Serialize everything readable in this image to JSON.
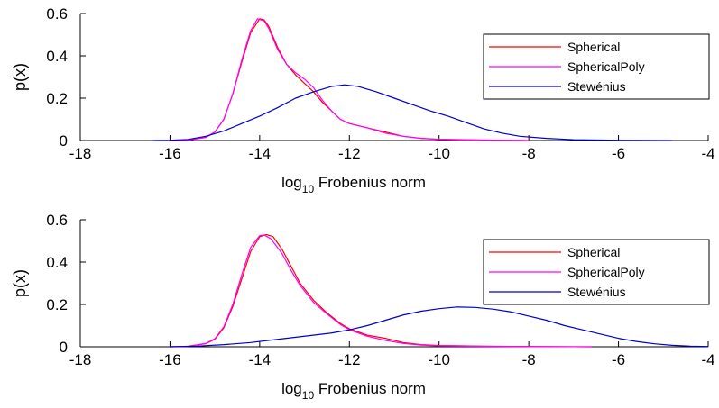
{
  "chart_data": [
    {
      "type": "line",
      "xlabel_base": "log",
      "xlabel_sub": "10",
      "xlabel_rest": " Frobenius norm",
      "ylabel": "p(x)",
      "xlim": [
        -18,
        -4
      ],
      "ylim": [
        0,
        0.6
      ],
      "xticks": [
        -18,
        -16,
        -14,
        -12,
        -10,
        -8,
        -6,
        -4
      ],
      "xtick_labels": [
        "-18",
        "-16",
        "-14",
        "-12",
        "-10",
        "-8",
        "-6",
        "-4"
      ],
      "yticks": [
        0,
        0.2,
        0.4,
        0.6
      ],
      "ytick_labels": [
        "0",
        "0.2",
        "0.4",
        "0.6"
      ],
      "grid": false,
      "legend_position": "top-right",
      "series": [
        {
          "name": "Spherical",
          "color": "#ff0000",
          "points": [
            [
              -16.0,
              0.0
            ],
            [
              -15.6,
              0.002
            ],
            [
              -15.2,
              0.015
            ],
            [
              -15.0,
              0.04
            ],
            [
              -14.8,
              0.1
            ],
            [
              -14.6,
              0.22
            ],
            [
              -14.4,
              0.37
            ],
            [
              -14.2,
              0.51
            ],
            [
              -14.0,
              0.575
            ],
            [
              -13.9,
              0.57
            ],
            [
              -13.8,
              0.54
            ],
            [
              -13.6,
              0.44
            ],
            [
              -13.4,
              0.36
            ],
            [
              -13.2,
              0.31
            ],
            [
              -13.0,
              0.27
            ],
            [
              -12.8,
              0.23
            ],
            [
              -12.6,
              0.18
            ],
            [
              -12.4,
              0.14
            ],
            [
              -12.2,
              0.1
            ],
            [
              -12.0,
              0.08
            ],
            [
              -11.6,
              0.06
            ],
            [
              -11.2,
              0.04
            ],
            [
              -10.8,
              0.02
            ],
            [
              -10.4,
              0.01
            ],
            [
              -10.0,
              0.006
            ],
            [
              -9.0,
              0.002
            ],
            [
              -8.0,
              0.0
            ]
          ]
        },
        {
          "name": "SphericalPoly",
          "color": "#ff00ff",
          "points": [
            [
              -16.0,
              0.0
            ],
            [
              -15.6,
              0.002
            ],
            [
              -15.2,
              0.015
            ],
            [
              -15.0,
              0.04
            ],
            [
              -14.8,
              0.1
            ],
            [
              -14.6,
              0.22
            ],
            [
              -14.4,
              0.38
            ],
            [
              -14.2,
              0.52
            ],
            [
              -14.05,
              0.575
            ],
            [
              -13.9,
              0.565
            ],
            [
              -13.8,
              0.53
            ],
            [
              -13.6,
              0.43
            ],
            [
              -13.4,
              0.36
            ],
            [
              -13.2,
              0.32
            ],
            [
              -13.0,
              0.29
            ],
            [
              -12.8,
              0.25
            ],
            [
              -12.6,
              0.19
            ],
            [
              -12.4,
              0.14
            ],
            [
              -12.2,
              0.1
            ],
            [
              -12.0,
              0.08
            ],
            [
              -11.6,
              0.06
            ],
            [
              -11.2,
              0.035
            ],
            [
              -10.8,
              0.02
            ],
            [
              -10.4,
              0.01
            ],
            [
              -10.0,
              0.005
            ],
            [
              -9.0,
              0.001
            ],
            [
              -8.0,
              0.0
            ]
          ]
        },
        {
          "name": "Stewénius",
          "color": "#0000cc",
          "points": [
            [
              -16.4,
              0.0
            ],
            [
              -16.0,
              0.001
            ],
            [
              -15.6,
              0.005
            ],
            [
              -15.2,
              0.02
            ],
            [
              -14.8,
              0.045
            ],
            [
              -14.4,
              0.08
            ],
            [
              -14.0,
              0.115
            ],
            [
              -13.6,
              0.155
            ],
            [
              -13.2,
              0.2
            ],
            [
              -12.8,
              0.23
            ],
            [
              -12.4,
              0.255
            ],
            [
              -12.1,
              0.263
            ],
            [
              -11.8,
              0.255
            ],
            [
              -11.4,
              0.23
            ],
            [
              -11.0,
              0.2
            ],
            [
              -10.6,
              0.17
            ],
            [
              -10.2,
              0.14
            ],
            [
              -9.8,
              0.115
            ],
            [
              -9.4,
              0.085
            ],
            [
              -9.0,
              0.055
            ],
            [
              -8.6,
              0.035
            ],
            [
              -8.2,
              0.02
            ],
            [
              -7.6,
              0.01
            ],
            [
              -7.0,
              0.004
            ],
            [
              -6.0,
              0.001
            ],
            [
              -4.8,
              0.0
            ]
          ]
        }
      ]
    },
    {
      "type": "line",
      "xlabel_base": "log",
      "xlabel_sub": "10",
      "xlabel_rest": " Frobenius norm",
      "ylabel": "p(x)",
      "xlim": [
        -18,
        -4
      ],
      "ylim": [
        0,
        0.6
      ],
      "xticks": [
        -18,
        -16,
        -14,
        -12,
        -10,
        -8,
        -6,
        -4
      ],
      "xtick_labels": [
        "-18",
        "-16",
        "-14",
        "-12",
        "-10",
        "-8",
        "-6",
        "-4"
      ],
      "yticks": [
        0,
        0.2,
        0.4,
        0.6
      ],
      "ytick_labels": [
        "0",
        "0.2",
        "0.4",
        "0.6"
      ],
      "grid": false,
      "legend_position": "right",
      "series": [
        {
          "name": "Spherical",
          "color": "#ff0000",
          "points": [
            [
              -16.0,
              0.0
            ],
            [
              -15.6,
              0.002
            ],
            [
              -15.2,
              0.015
            ],
            [
              -15.0,
              0.035
            ],
            [
              -14.8,
              0.09
            ],
            [
              -14.6,
              0.19
            ],
            [
              -14.4,
              0.32
            ],
            [
              -14.2,
              0.45
            ],
            [
              -14.0,
              0.52
            ],
            [
              -13.85,
              0.53
            ],
            [
              -13.7,
              0.52
            ],
            [
              -13.5,
              0.46
            ],
            [
              -13.3,
              0.38
            ],
            [
              -13.1,
              0.3
            ],
            [
              -12.8,
              0.22
            ],
            [
              -12.5,
              0.16
            ],
            [
              -12.2,
              0.11
            ],
            [
              -12.0,
              0.085
            ],
            [
              -11.6,
              0.055
            ],
            [
              -11.2,
              0.04
            ],
            [
              -10.8,
              0.02
            ],
            [
              -10.4,
              0.01
            ],
            [
              -10.0,
              0.006
            ],
            [
              -9.0,
              0.003
            ],
            [
              -8.0,
              0.001
            ],
            [
              -6.6,
              0.0
            ]
          ]
        },
        {
          "name": "SphericalPoly",
          "color": "#ff00ff",
          "points": [
            [
              -16.0,
              0.0
            ],
            [
              -15.6,
              0.002
            ],
            [
              -15.2,
              0.016
            ],
            [
              -15.0,
              0.038
            ],
            [
              -14.8,
              0.095
            ],
            [
              -14.6,
              0.2
            ],
            [
              -14.4,
              0.34
            ],
            [
              -14.2,
              0.47
            ],
            [
              -14.0,
              0.525
            ],
            [
              -13.9,
              0.528
            ],
            [
              -13.75,
              0.51
            ],
            [
              -13.5,
              0.44
            ],
            [
              -13.3,
              0.36
            ],
            [
              -13.1,
              0.29
            ],
            [
              -12.8,
              0.21
            ],
            [
              -12.5,
              0.155
            ],
            [
              -12.2,
              0.105
            ],
            [
              -12.0,
              0.08
            ],
            [
              -11.6,
              0.05
            ],
            [
              -11.2,
              0.03
            ],
            [
              -10.8,
              0.016
            ],
            [
              -10.4,
              0.008
            ],
            [
              -10.0,
              0.004
            ],
            [
              -9.0,
              0.002
            ],
            [
              -8.0,
              0.001
            ],
            [
              -6.6,
              0.0
            ]
          ]
        },
        {
          "name": "Stewénius",
          "color": "#0000cc",
          "points": [
            [
              -16.0,
              0.0
            ],
            [
              -15.4,
              0.003
            ],
            [
              -14.8,
              0.01
            ],
            [
              -14.2,
              0.02
            ],
            [
              -13.6,
              0.035
            ],
            [
              -13.0,
              0.05
            ],
            [
              -12.4,
              0.065
            ],
            [
              -12.0,
              0.08
            ],
            [
              -11.6,
              0.1
            ],
            [
              -11.2,
              0.125
            ],
            [
              -10.8,
              0.15
            ],
            [
              -10.4,
              0.168
            ],
            [
              -10.0,
              0.18
            ],
            [
              -9.6,
              0.188
            ],
            [
              -9.2,
              0.186
            ],
            [
              -8.8,
              0.178
            ],
            [
              -8.4,
              0.165
            ],
            [
              -8.0,
              0.145
            ],
            [
              -7.6,
              0.125
            ],
            [
              -7.2,
              0.1
            ],
            [
              -6.8,
              0.08
            ],
            [
              -6.4,
              0.06
            ],
            [
              -6.0,
              0.04
            ],
            [
              -5.6,
              0.025
            ],
            [
              -5.2,
              0.014
            ],
            [
              -4.8,
              0.007
            ],
            [
              -4.4,
              0.003
            ],
            [
              -4.0,
              0.001
            ]
          ]
        }
      ]
    }
  ]
}
